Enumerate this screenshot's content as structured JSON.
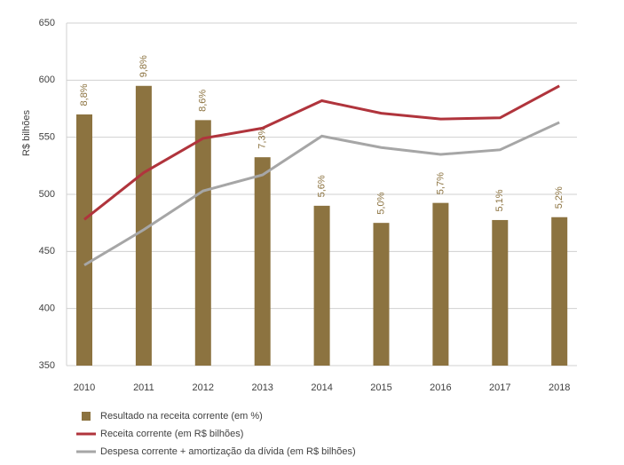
{
  "chart_data": {
    "type": "combo",
    "y_label": "R$ bilhões",
    "categories": [
      "2010",
      "2011",
      "2012",
      "2013",
      "2014",
      "2015",
      "2016",
      "2017",
      "2018"
    ],
    "ylim": [
      350,
      650
    ],
    "yticks": [
      350,
      400,
      450,
      500,
      550,
      600,
      650
    ],
    "y2lim": [
      0,
      12
    ],
    "grid": true,
    "series": [
      {
        "name": "Resultado na receita corrente (em %)",
        "type": "bar",
        "axis": "y2",
        "color": "#8c7340",
        "values": [
          8.8,
          9.8,
          8.6,
          7.3,
          5.6,
          5.0,
          5.7,
          5.1,
          5.2
        ],
        "value_labels": [
          "8,8%",
          "9,8%",
          "8,6%",
          "7,3%",
          "5,6%",
          "5,0%",
          "5,7%",
          "5,1%",
          "5,2%"
        ]
      },
      {
        "name": "Receita corrente (em R$ bilhões)",
        "type": "line",
        "color": "#b0343c",
        "values": [
          478,
          519,
          549,
          558,
          582,
          571,
          566,
          567,
          595
        ]
      },
      {
        "name": "Despesa corrente + amortização da dívida (em R$ bilhões)",
        "type": "line",
        "color": "#a6a6a6",
        "values": [
          438,
          469,
          503,
          517,
          551,
          541,
          535,
          539,
          563
        ]
      }
    ]
  }
}
